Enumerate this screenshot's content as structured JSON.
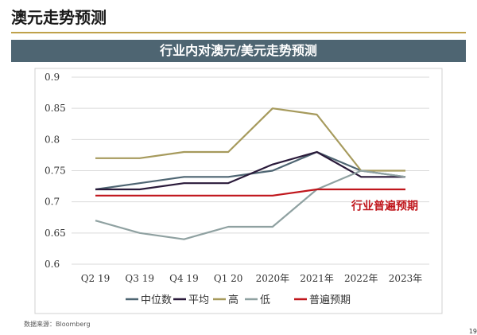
{
  "header": {
    "title": "澳元走势预测"
  },
  "banner": {
    "text": "行业内对澳元/美元走势预测"
  },
  "footnote": "数据来源：Bloomberg",
  "page_number": "19",
  "chart_data": {
    "type": "line",
    "title": "行业内对澳元/美元走势预测",
    "categories": [
      "Q2 19",
      "Q3 19",
      "Q4 19",
      "Q1 20",
      "2020年",
      "2021年",
      "2022年",
      "2023年"
    ],
    "y_ticks": [
      0.6,
      0.65,
      0.7,
      0.75,
      0.8,
      0.85,
      0.9
    ],
    "y_tick_labels": [
      "0.6",
      "0.65",
      "0.7",
      "0.75",
      "0.8",
      "0.85",
      "0.9"
    ],
    "ylim": [
      0.6,
      0.9
    ],
    "grid": true,
    "legend_position": "bottom",
    "series": [
      {
        "name": "中位数",
        "color": "#4e6572",
        "values": [
          0.72,
          0.73,
          0.74,
          0.74,
          0.75,
          0.78,
          0.75,
          0.74
        ]
      },
      {
        "name": "平均",
        "color": "#2a1a3a",
        "values": [
          0.72,
          0.72,
          0.73,
          0.73,
          0.76,
          0.78,
          0.74,
          0.74
        ]
      },
      {
        "name": "高",
        "color": "#a69a5c",
        "values": [
          0.77,
          0.77,
          0.78,
          0.78,
          0.85,
          0.84,
          0.75,
          0.75
        ]
      },
      {
        "name": "低",
        "color": "#8fa1a1",
        "values": [
          0.67,
          0.65,
          0.64,
          0.66,
          0.66,
          0.72,
          0.75,
          0.74
        ]
      },
      {
        "name": "普遍预期",
        "color": "#c0161c",
        "values": [
          0.71,
          0.71,
          0.71,
          0.71,
          0.71,
          0.72,
          0.72,
          0.72
        ]
      }
    ],
    "annotation": {
      "text": "行业普遍预期",
      "color": "#c0161c"
    }
  }
}
